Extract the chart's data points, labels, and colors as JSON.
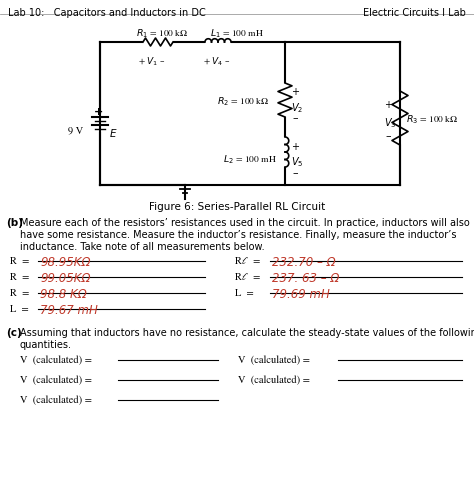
{
  "header_left": "Lab 10:   Capacitors and Inductors in DC",
  "header_right": "Electric Circuits I Lab",
  "fig_caption": "Figure 6: Series-Parallel RL Circuit",
  "section_b_label": "(b)",
  "section_b_text1": "Measure each of the resistors’ resistances used in the circuit. In practice, inductors will also",
  "section_b_text2": "have some resistance. Measure the inductor’s resistance. Finally, measure the inductor’s",
  "section_b_text3": "inductance. Take note of all measurements below.",
  "meas_left": [
    {
      "label": "R₁ = ",
      "value": "98.95KΩ"
    },
    {
      "label": "R₂ = ",
      "value": "99.05KΩ"
    },
    {
      "label": "R₃ = ",
      "value": "98.8 KΩ"
    },
    {
      "label": "L₂ = ",
      "value": "79.67 mH"
    }
  ],
  "meas_right": [
    {
      "label": "Rℓ₁ = ",
      "value": "232.70 – Ω"
    },
    {
      "label": "Rℓ₂ = ",
      "value": "237. 63 – Ω"
    },
    {
      "label": "L₁ = ",
      "value": "79.69 mH"
    }
  ],
  "section_c_label": "(c)",
  "section_c_text1": "Assuming that inductors have no resistance, calculate the steady-state values of the following",
  "section_c_text2": "quantities.",
  "calc_left": [
    "V₁ (calculated) = ",
    "V₃ (calculated) = ",
    "V₅ (calculated) = "
  ],
  "calc_right": [
    "V₂ (calculated) = ",
    "V₄ (calculated) = "
  ],
  "bg_color": "#ffffff",
  "hw_color": "#c0392b"
}
